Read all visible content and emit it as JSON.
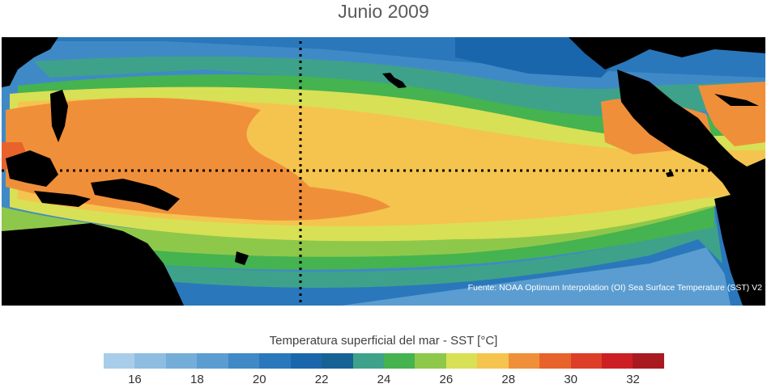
{
  "title": "Junio 2009",
  "source_note": "Fuente: NOAA Optimum Interpolation (OI) Sea Surface Temperature (SST) V2",
  "colorbar": {
    "label": "Temperatura superficial del mar - SST  [°C]",
    "min": 15,
    "max": 33,
    "colors": [
      "#a8cde8",
      "#8dbde0",
      "#74add8",
      "#5b9dd0",
      "#3f8ac6",
      "#2a78bb",
      "#1a66ac",
      "#176294",
      "#3ea28a",
      "#45b34f",
      "#8ec84a",
      "#d8e056",
      "#f4c44e",
      "#f08f3a",
      "#e8622b",
      "#dd3e27",
      "#cc1f24",
      "#a81a1f"
    ],
    "ticks": [
      "16",
      "18",
      "20",
      "22",
      "24",
      "26",
      "28",
      "30",
      "32"
    ],
    "tick_values": [
      16,
      18,
      20,
      22,
      24,
      26,
      28,
      30,
      32
    ]
  },
  "palette": {
    "land": "#000000",
    "grid_line": "#000000"
  }
}
